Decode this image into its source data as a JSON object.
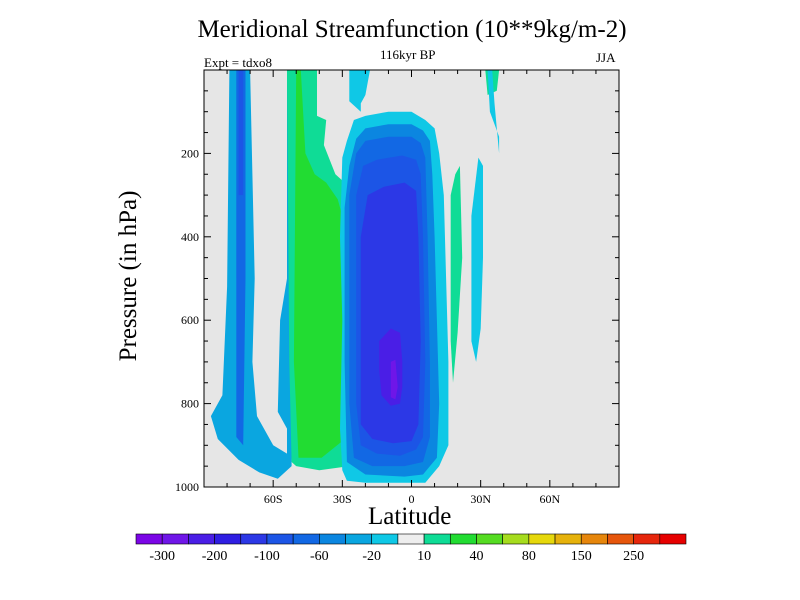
{
  "chart_data": {
    "type": "heatmap",
    "title": "Meridional Streamfunction (10**9kg/m-2)",
    "subtitle": "116kyr BP",
    "left_label": "Expt = tdxo8",
    "right_label": "JJA",
    "xlabel": "Latitude",
    "ylabel": "Pressure (in hPa)",
    "x_range": [
      -90,
      90
    ],
    "y_range": [
      0,
      1000
    ],
    "y_reversed": true,
    "x_ticks": [
      {
        "value": -60,
        "label": "60S"
      },
      {
        "value": -30,
        "label": "30S"
      },
      {
        "value": 0,
        "label": "0"
      },
      {
        "value": 30,
        "label": "30N"
      },
      {
        "value": 60,
        "label": "60N"
      }
    ],
    "y_ticks": [
      {
        "value": 200,
        "label": "200"
      },
      {
        "value": 400,
        "label": "400"
      },
      {
        "value": 600,
        "label": "600"
      },
      {
        "value": 800,
        "label": "800"
      },
      {
        "value": 1000,
        "label": "1000"
      }
    ],
    "background_color": "#e6e6e6",
    "levels": [
      -300,
      -250,
      -200,
      -150,
      -100,
      -80,
      -60,
      -40,
      -20,
      -10,
      10,
      20,
      40,
      60,
      80,
      100,
      150,
      200,
      250,
      300
    ],
    "colorbar_labels": [
      "-300",
      "-200",
      "-100",
      "-60",
      "-20",
      "10",
      "40",
      "80",
      "150",
      "250"
    ],
    "colors": [
      "#7b06e6",
      "#6f16e8",
      "#4a1ee6",
      "#2f1ee2",
      "#2c38e6",
      "#1c55e6",
      "#1268e4",
      "#0b86e0",
      "#0aa6e0",
      "#0fc8e6",
      "#eeeeee",
      "#0fdc96",
      "#22dc32",
      "#55dc22",
      "#a6dc1e",
      "#e6d80c",
      "#e6b20c",
      "#e6860c",
      "#e6560c",
      "#e6260c",
      "#e60000"
    ],
    "regions": [
      {
        "value": -40,
        "color": "#0aa6e0",
        "polygon": [
          [
            -87,
            830
          ],
          [
            -82,
            780
          ],
          [
            -80,
            520
          ],
          [
            -79,
            0
          ],
          [
            -70,
            0
          ],
          [
            -69,
            250
          ],
          [
            -68,
            500
          ],
          [
            -69,
            700
          ],
          [
            -67,
            830
          ],
          [
            -60,
            900
          ],
          [
            -54,
            920
          ],
          [
            -54,
            860
          ],
          [
            -58,
            820
          ],
          [
            -57,
            600
          ],
          [
            -54,
            500
          ],
          [
            -54,
            0
          ],
          [
            -51,
            0
          ],
          [
            -52,
            500
          ],
          [
            -52,
            950
          ],
          [
            -58,
            980
          ],
          [
            -66,
            965
          ],
          [
            -75,
            935
          ],
          [
            -84,
            885
          ]
        ]
      },
      {
        "value": -60,
        "color": "#1268e4",
        "polygon": [
          [
            -76,
            500
          ],
          [
            -76,
            0
          ],
          [
            -72,
            0
          ],
          [
            -72,
            500
          ],
          [
            -73,
            900
          ],
          [
            -76,
            880
          ]
        ]
      },
      {
        "value": -100,
        "color": "#1c55e6",
        "polygon": [
          [
            -75,
            300
          ],
          [
            -75,
            0
          ],
          [
            -73,
            0
          ],
          [
            -73,
            300
          ]
        ]
      },
      {
        "value": 10,
        "color": "#0fdc96",
        "polygon": [
          [
            -54,
            0
          ],
          [
            -41,
            0
          ],
          [
            -41,
            110
          ],
          [
            -37,
            120
          ],
          [
            -38,
            180
          ],
          [
            -33,
            250
          ],
          [
            -23,
            300
          ],
          [
            -20,
            350
          ],
          [
            -20,
            440
          ],
          [
            -23,
            430
          ],
          [
            -23,
            520
          ],
          [
            -20,
            540
          ],
          [
            -20,
            970
          ],
          [
            -27,
            950
          ],
          [
            -40,
            960
          ],
          [
            -50,
            950
          ],
          [
            -52,
            940
          ],
          [
            -53,
            700
          ]
        ]
      },
      {
        "value": 40,
        "color": "#22dc32",
        "polygon": [
          [
            -50,
            0
          ],
          [
            -48,
            0
          ],
          [
            -46,
            200
          ],
          [
            -42,
            250
          ],
          [
            -37,
            270
          ],
          [
            -32,
            310
          ],
          [
            -29,
            370
          ],
          [
            -28,
            420
          ],
          [
            -30,
            890
          ],
          [
            -39,
            930
          ],
          [
            -49,
            930
          ],
          [
            -51,
            700
          ]
        ]
      },
      {
        "value": 10,
        "color": "#0fdc96",
        "polygon": [
          [
            32,
            0
          ],
          [
            38,
            0
          ],
          [
            37,
            50
          ],
          [
            33,
            60
          ]
        ]
      },
      {
        "value": 10,
        "color": "#0fdc96",
        "polygon": [
          [
            19,
            250
          ],
          [
            21,
            230
          ],
          [
            22,
            450
          ],
          [
            20,
            630
          ],
          [
            18,
            750
          ],
          [
            17,
            650
          ],
          [
            17,
            300
          ]
        ]
      },
      {
        "value": -10,
        "color": "#0fc8e6",
        "polygon": [
          [
            -27,
            0
          ],
          [
            -18,
            0
          ],
          [
            -20,
            60
          ],
          [
            -22,
            80
          ],
          [
            -22,
            100
          ],
          [
            -27,
            75
          ]
        ]
      },
      {
        "value": -20,
        "color": "#0fc8e6",
        "polygon": [
          [
            -30,
            210
          ],
          [
            -28,
            170
          ],
          [
            -25,
            120
          ],
          [
            -20,
            110
          ],
          [
            -10,
            100
          ],
          [
            0,
            100
          ],
          [
            6,
            120
          ],
          [
            10,
            140
          ],
          [
            12,
            200
          ],
          [
            14,
            300
          ],
          [
            15,
            500
          ],
          [
            16,
            700
          ],
          [
            16,
            900
          ],
          [
            12,
            950
          ],
          [
            6,
            990
          ],
          [
            -3,
            990
          ],
          [
            -20,
            990
          ],
          [
            -28,
            985
          ],
          [
            -30,
            960
          ],
          [
            -31,
            860
          ],
          [
            -30,
            600
          ],
          [
            -31,
            400
          ]
        ]
      },
      {
        "value": -40,
        "color": "#0b86e0",
        "polygon": [
          [
            -29,
            330
          ],
          [
            -27,
            230
          ],
          [
            -24,
            165
          ],
          [
            -20,
            140
          ],
          [
            -10,
            130
          ],
          [
            0,
            130
          ],
          [
            5,
            145
          ],
          [
            8,
            170
          ],
          [
            9,
            250
          ],
          [
            10,
            400
          ],
          [
            11,
            600
          ],
          [
            12,
            800
          ],
          [
            11,
            930
          ],
          [
            5,
            970
          ],
          [
            -3,
            975
          ],
          [
            -20,
            970
          ],
          [
            -28,
            940
          ],
          [
            -29,
            700
          ]
        ]
      },
      {
        "value": -60,
        "color": "#1268e4",
        "polygon": [
          [
            -27,
            300
          ],
          [
            -24,
            200
          ],
          [
            -20,
            170
          ],
          [
            -10,
            160
          ],
          [
            0,
            160
          ],
          [
            4,
            175
          ],
          [
            6,
            210
          ],
          [
            7,
            400
          ],
          [
            8,
            700
          ],
          [
            8,
            880
          ],
          [
            5,
            940
          ],
          [
            -3,
            950
          ],
          [
            -17,
            950
          ],
          [
            -25,
            930
          ],
          [
            -27,
            800
          ]
        ]
      },
      {
        "value": -100,
        "color": "#1c55e6",
        "polygon": [
          [
            -24,
            300
          ],
          [
            -21,
            230
          ],
          [
            -15,
            215
          ],
          [
            -4,
            205
          ],
          [
            2,
            215
          ],
          [
            4,
            250
          ],
          [
            5,
            400
          ],
          [
            6,
            700
          ],
          [
            5,
            880
          ],
          [
            2,
            910
          ],
          [
            -5,
            925
          ],
          [
            -15,
            920
          ],
          [
            -22,
            900
          ],
          [
            -24,
            800
          ]
        ]
      },
      {
        "value": -150,
        "color": "#2c38e6",
        "polygon": [
          [
            -22,
            400
          ],
          [
            -19,
            300
          ],
          [
            -12,
            280
          ],
          [
            -3,
            270
          ],
          [
            2,
            290
          ],
          [
            3,
            400
          ],
          [
            4,
            650
          ],
          [
            3,
            850
          ],
          [
            0,
            890
          ],
          [
            -8,
            895
          ],
          [
            -17,
            885
          ],
          [
            -22,
            850
          ]
        ]
      },
      {
        "value": -200,
        "color": "#4a1ee6",
        "polygon": [
          [
            -14,
            650
          ],
          [
            -9,
            620
          ],
          [
            -5,
            630
          ],
          [
            -4,
            700
          ],
          [
            -4,
            760
          ],
          [
            -5,
            800
          ],
          [
            -9,
            805
          ],
          [
            -13,
            780
          ],
          [
            -14,
            720
          ]
        ]
      },
      {
        "value": -250,
        "color": "#6f16e8",
        "polygon": [
          [
            -9,
            700
          ],
          [
            -7,
            695
          ],
          [
            -6,
            760
          ],
          [
            -7,
            790
          ],
          [
            -9,
            785
          ]
        ]
      },
      {
        "value": -20,
        "color": "#0fc8e6",
        "polygon": [
          [
            26,
            350
          ],
          [
            29,
            210
          ],
          [
            31,
            230
          ],
          [
            31,
            450
          ],
          [
            30,
            620
          ],
          [
            28,
            700
          ],
          [
            26,
            650
          ]
        ]
      },
      {
        "value": -20,
        "color": "#0fc8e6",
        "polygon": [
          [
            33,
            0
          ],
          [
            35,
            0
          ],
          [
            36,
            80
          ],
          [
            38,
            200
          ],
          [
            38,
            160
          ],
          [
            34,
            100
          ]
        ]
      }
    ]
  }
}
